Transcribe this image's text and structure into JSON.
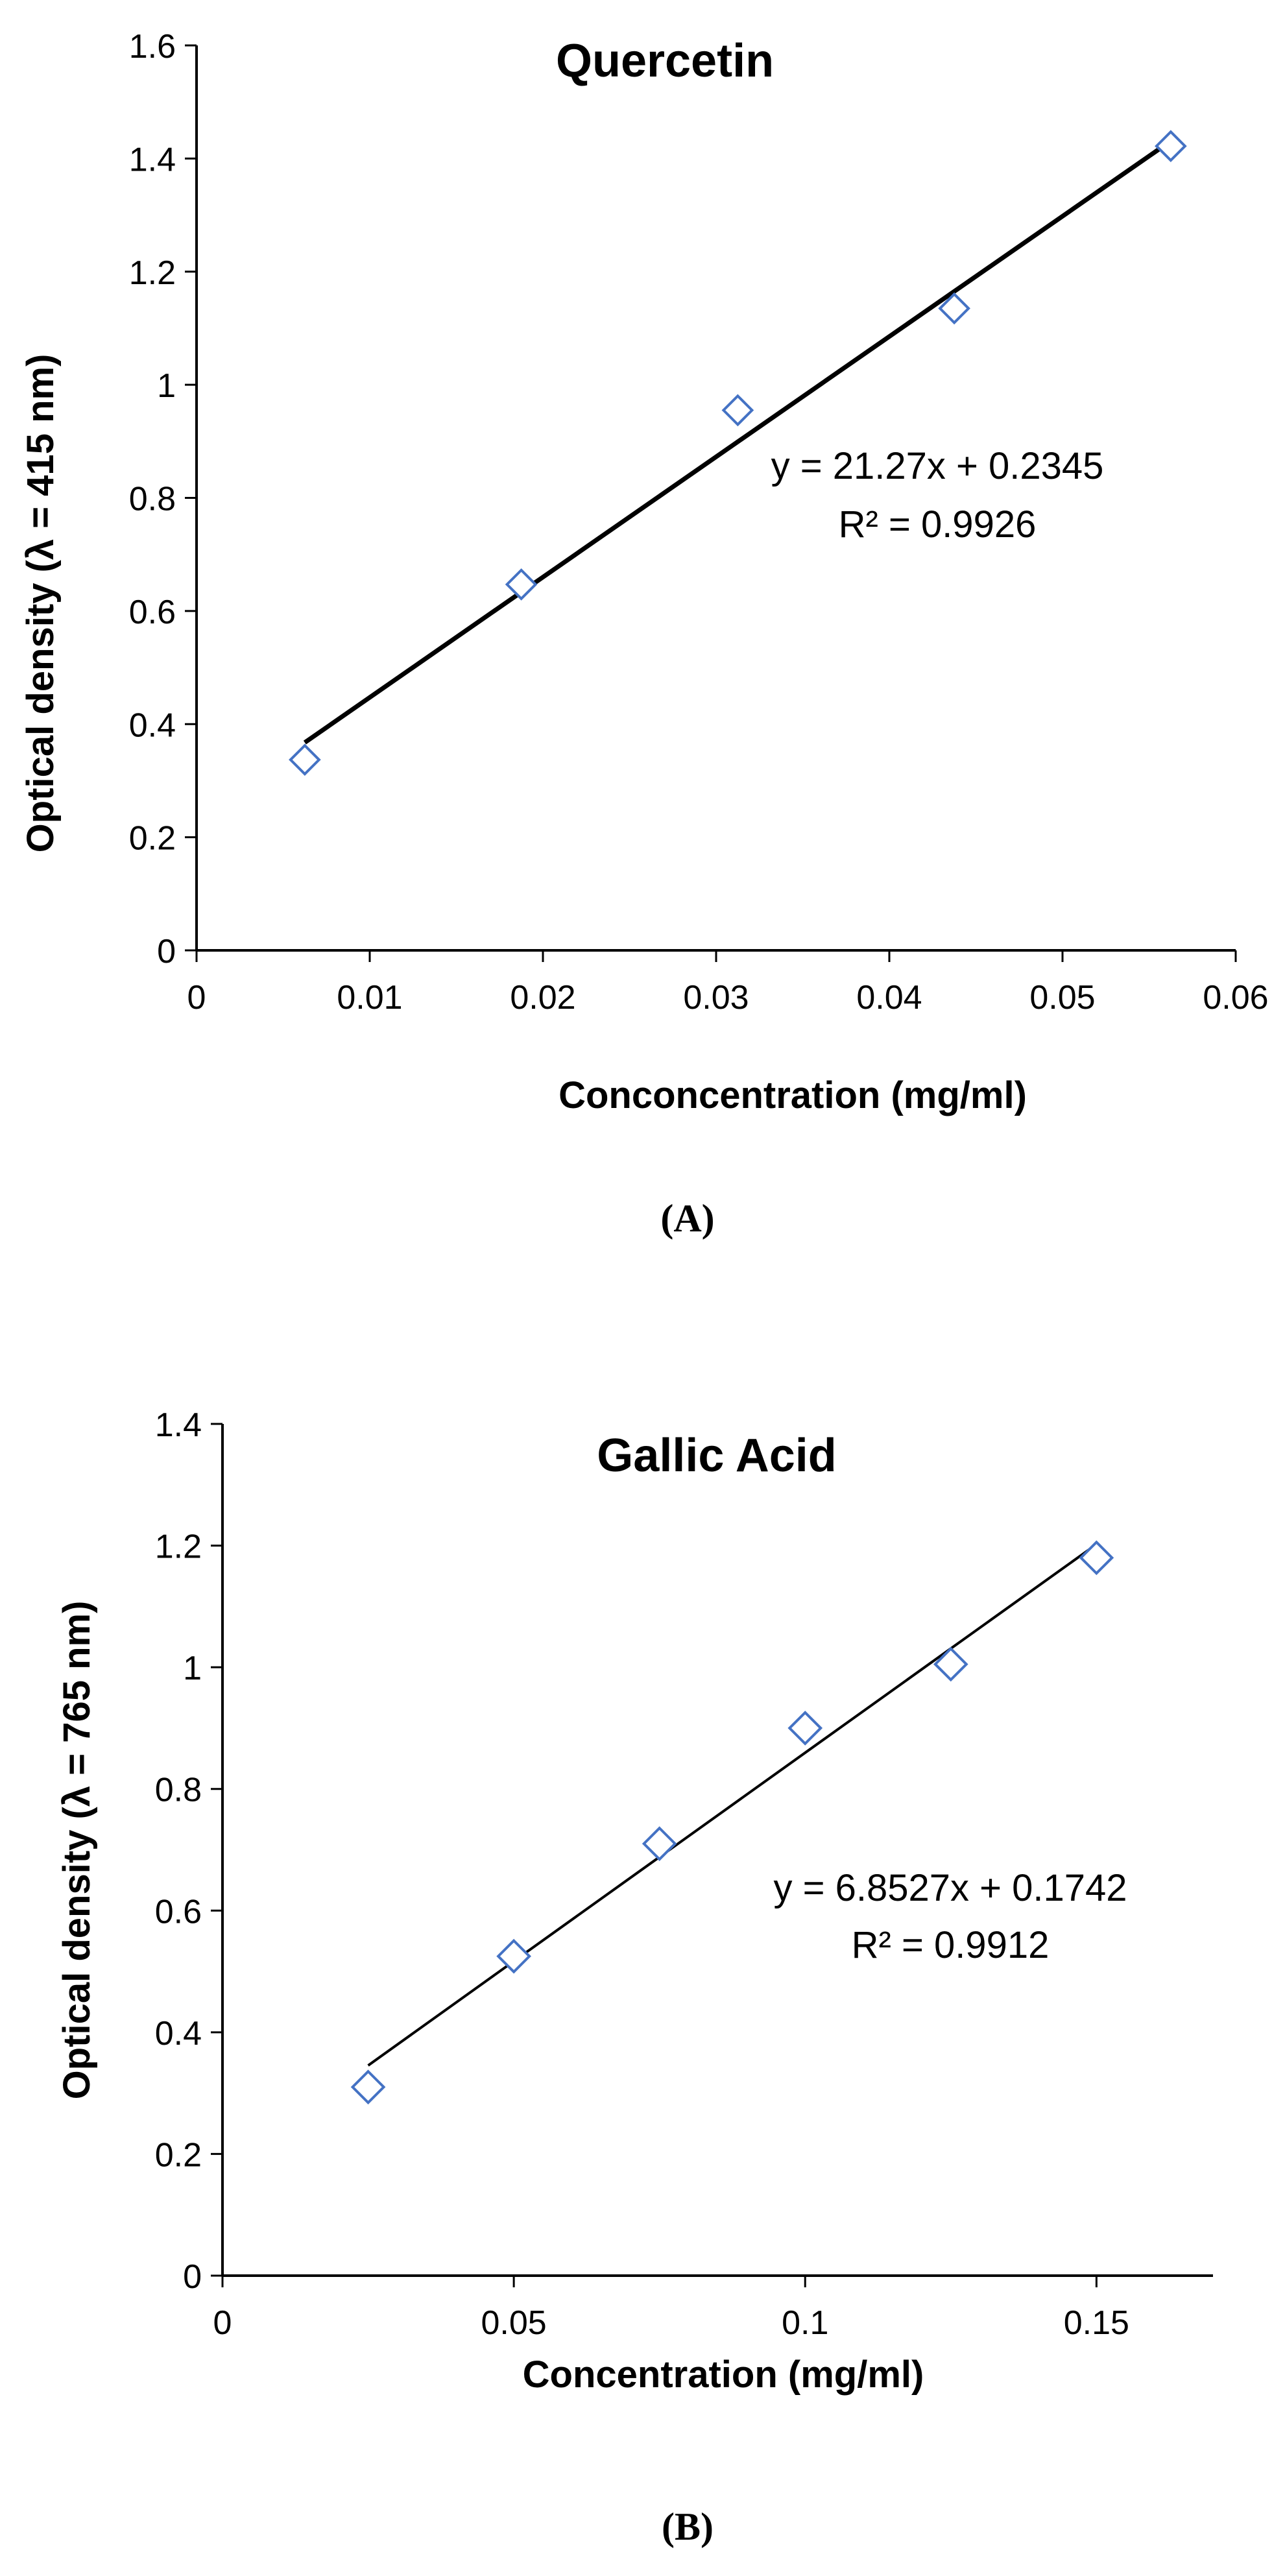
{
  "chart_data": [
    {
      "type": "scatter",
      "title": "Quercetin",
      "xlabel": "Conconcentration (mg/ml)",
      "ylabel": "Optical density (λ = 415 nm)",
      "xlim": [
        0,
        0.06
      ],
      "ylim": [
        0,
        1.6
      ],
      "x_ticks": [
        "0",
        "0.01",
        "0.02",
        "0.03",
        "0.04",
        "0.05",
        "0.06"
      ],
      "y_ticks": [
        "0",
        "0.2",
        "0.4",
        "0.6",
        "0.8",
        "1",
        "1.2",
        "1.4",
        "1.6"
      ],
      "grid": false,
      "legend": "none",
      "series": [
        {
          "x": [
            0.00625,
            0.01875,
            0.03125,
            0.04375,
            0.05625
          ],
          "y": [
            0.337,
            0.647,
            0.955,
            1.135,
            1.422
          ]
        }
      ],
      "trendline": {
        "slope": 21.27,
        "intercept": 0.2345,
        "x_range": [
          0.00625,
          0.05625
        ]
      },
      "annotations": [
        "y = 21.27x + 0.2345",
        "R² = 0.9926"
      ],
      "caption": "(A)",
      "marker_color": "#4472c4"
    },
    {
      "type": "scatter",
      "title": "Gallic Acid",
      "xlabel": "Concentration (mg/ml)",
      "ylabel": "Optical density (λ = 765 nm)",
      "xlim": [
        0,
        0.17
      ],
      "ylim": [
        0,
        1.4
      ],
      "x_ticks": [
        "0",
        "0.05",
        "0.1",
        "0.15"
      ],
      "y_ticks": [
        "0",
        "0.2",
        "0.4",
        "0.6",
        "0.8",
        "1",
        "1.2",
        "1.4"
      ],
      "grid": false,
      "legend": "none",
      "series": [
        {
          "x": [
            0.025,
            0.05,
            0.075,
            0.1,
            0.125,
            0.15
          ],
          "y": [
            0.31,
            0.525,
            0.71,
            0.9,
            1.005,
            1.18
          ]
        }
      ],
      "trendline": {
        "slope": 6.8527,
        "intercept": 0.1742,
        "x_range": [
          0.025,
          0.15
        ]
      },
      "annotations": [
        "y = 6.8527x + 0.1742",
        "R² = 0.9912"
      ],
      "caption": "(B)",
      "marker_color": "#4472c4"
    }
  ]
}
